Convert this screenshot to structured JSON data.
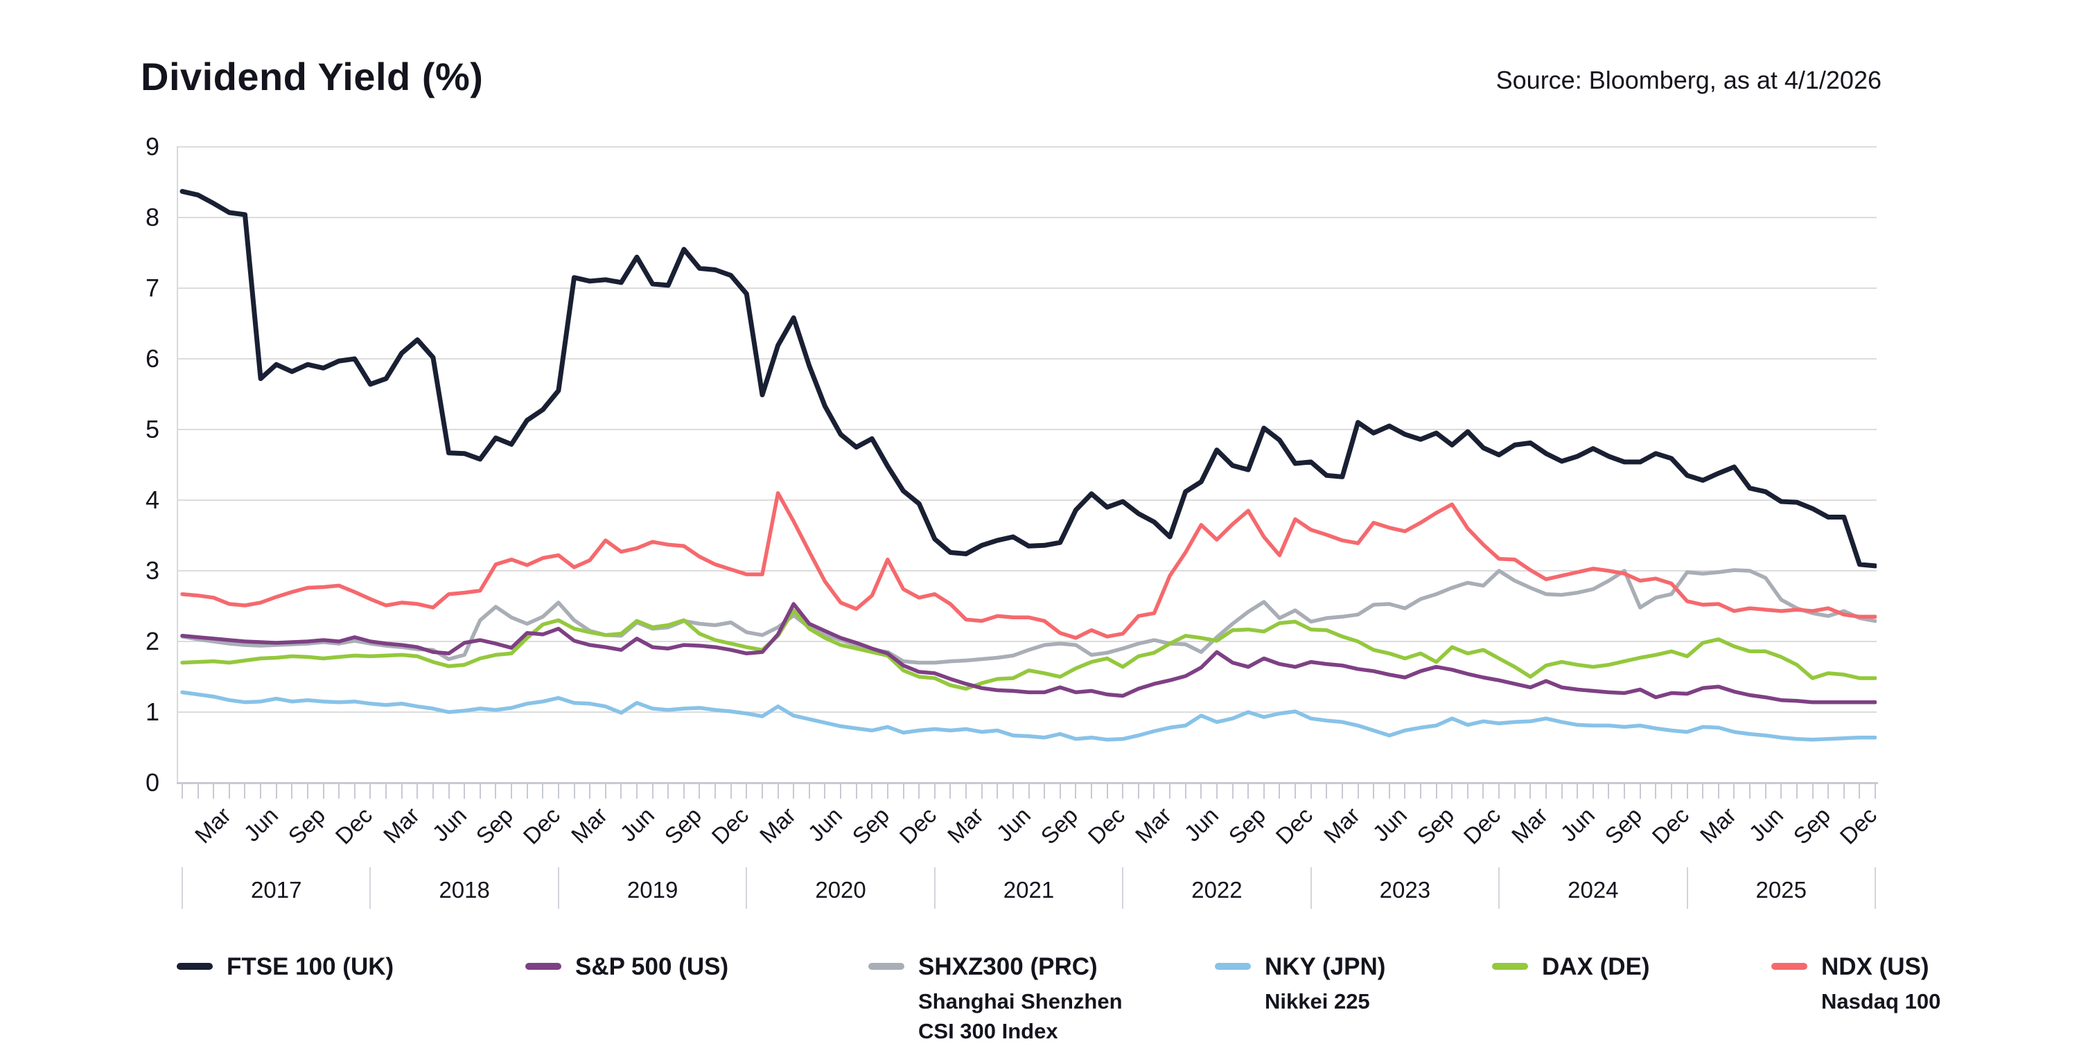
{
  "header": {
    "title": "Dividend Yield (%)",
    "source": "Source: Bloomberg, as at 4/1/2026"
  },
  "chart_data": {
    "type": "line",
    "title": "Dividend Yield (%)",
    "x_start": "Jan 2017",
    "x_end": "Jan 2026",
    "x_quarter_labels": [
      "Mar",
      "Jun",
      "Sep",
      "Dec"
    ],
    "years": [
      "2017",
      "2018",
      "2019",
      "2020",
      "2021",
      "2022",
      "2023",
      "2024",
      "2025"
    ],
    "ylim": [
      0,
      9
    ],
    "y_ticks": [
      "0",
      "1",
      "2",
      "3",
      "4",
      "5",
      "6",
      "7",
      "8",
      "9"
    ],
    "grid": "horizontal",
    "legend_position": "bottom",
    "series": [
      {
        "name": "FTSE 100 (UK)",
        "sublabel": [],
        "color": "#1a2033",
        "values": [
          8.37,
          8.32,
          8.2,
          8.07,
          8.04,
          5.72,
          5.92,
          5.82,
          5.92,
          5.87,
          5.97,
          6.0,
          5.64,
          5.72,
          6.08,
          6.27,
          6.02,
          4.67,
          4.66,
          4.58,
          4.88,
          4.79,
          5.13,
          5.28,
          5.55,
          7.15,
          7.1,
          7.12,
          7.08,
          7.44,
          7.06,
          7.04,
          7.55,
          7.28,
          7.26,
          7.18,
          6.92,
          5.49,
          6.19,
          6.58,
          5.9,
          5.33,
          4.93,
          4.75,
          4.87,
          4.48,
          4.13,
          3.95,
          3.45,
          3.26,
          3.24,
          3.36,
          3.43,
          3.48,
          3.35,
          3.36,
          3.4,
          3.86,
          4.09,
          3.9,
          3.98,
          3.81,
          3.69,
          3.48,
          4.12,
          4.26,
          4.71,
          4.49,
          4.43,
          5.02,
          4.85,
          4.52,
          4.54,
          4.35,
          4.33,
          5.1,
          4.95,
          5.05,
          4.93,
          4.86,
          4.95,
          4.78,
          4.97,
          4.74,
          4.64,
          4.78,
          4.81,
          4.66,
          4.55,
          4.62,
          4.73,
          4.62,
          4.54,
          4.54,
          4.66,
          4.59,
          4.35,
          4.28,
          4.38,
          4.47,
          4.17,
          4.12,
          3.98,
          3.97,
          3.88,
          3.76,
          3.76,
          3.09,
          3.07
        ]
      },
      {
        "name": "S&P 500 (US)",
        "sublabel": [],
        "color": "#7e4084",
        "values": [
          2.08,
          2.06,
          2.04,
          2.02,
          2.0,
          1.99,
          1.98,
          1.99,
          2.0,
          2.02,
          2.0,
          2.06,
          2.0,
          1.97,
          1.95,
          1.92,
          1.85,
          1.83,
          1.98,
          2.02,
          1.97,
          1.91,
          2.12,
          2.1,
          2.18,
          2.01,
          1.95,
          1.92,
          1.88,
          2.04,
          1.92,
          1.9,
          1.95,
          1.94,
          1.92,
          1.88,
          1.83,
          1.85,
          2.1,
          2.53,
          2.25,
          2.15,
          2.05,
          1.98,
          1.9,
          1.83,
          1.66,
          1.57,
          1.55,
          1.47,
          1.4,
          1.34,
          1.31,
          1.3,
          1.28,
          1.28,
          1.35,
          1.28,
          1.3,
          1.25,
          1.23,
          1.33,
          1.4,
          1.45,
          1.51,
          1.63,
          1.85,
          1.7,
          1.64,
          1.76,
          1.68,
          1.64,
          1.71,
          1.68,
          1.66,
          1.61,
          1.58,
          1.53,
          1.49,
          1.58,
          1.64,
          1.6,
          1.54,
          1.49,
          1.45,
          1.4,
          1.35,
          1.44,
          1.35,
          1.32,
          1.3,
          1.28,
          1.27,
          1.32,
          1.21,
          1.27,
          1.26,
          1.34,
          1.36,
          1.29,
          1.24,
          1.21,
          1.17,
          1.16,
          1.14,
          1.14,
          1.14,
          1.14,
          1.14
        ]
      },
      {
        "name": "SHXZ300 (PRC)",
        "sublabel": [
          "Shanghai Shenzhen",
          "CSI 300 Index"
        ],
        "color": "#a9aeb6",
        "values": [
          2.07,
          2.03,
          2.0,
          1.97,
          1.95,
          1.94,
          1.95,
          1.96,
          1.97,
          1.99,
          1.97,
          2.01,
          1.97,
          1.94,
          1.92,
          1.89,
          1.88,
          1.75,
          1.81,
          2.3,
          2.49,
          2.34,
          2.25,
          2.35,
          2.55,
          2.3,
          2.15,
          2.09,
          2.08,
          2.27,
          2.18,
          2.2,
          2.29,
          2.25,
          2.23,
          2.27,
          2.13,
          2.09,
          2.2,
          2.37,
          2.2,
          2.1,
          2.02,
          1.95,
          1.88,
          1.85,
          1.72,
          1.7,
          1.7,
          1.72,
          1.73,
          1.75,
          1.77,
          1.8,
          1.88,
          1.95,
          1.97,
          1.95,
          1.81,
          1.84,
          1.9,
          1.97,
          2.02,
          1.97,
          1.96,
          1.85,
          2.06,
          2.25,
          2.42,
          2.56,
          2.33,
          2.44,
          2.28,
          2.33,
          2.35,
          2.38,
          2.52,
          2.53,
          2.47,
          2.6,
          2.67,
          2.76,
          2.83,
          2.79,
          3.0,
          2.86,
          2.76,
          2.67,
          2.66,
          2.69,
          2.74,
          2.86,
          3.0,
          2.48,
          2.62,
          2.67,
          2.98,
          2.96,
          2.98,
          3.01,
          3.0,
          2.9,
          2.59,
          2.47,
          2.4,
          2.36,
          2.43,
          2.33,
          2.29
        ]
      },
      {
        "name": "NKY (JPN)",
        "sublabel": [
          "Nikkei 225"
        ],
        "color": "#88c2e8",
        "values": [
          1.28,
          1.25,
          1.22,
          1.17,
          1.14,
          1.15,
          1.19,
          1.15,
          1.17,
          1.15,
          1.14,
          1.15,
          1.12,
          1.1,
          1.12,
          1.08,
          1.05,
          1.0,
          1.02,
          1.05,
          1.03,
          1.06,
          1.12,
          1.15,
          1.2,
          1.13,
          1.12,
          1.08,
          0.99,
          1.13,
          1.05,
          1.03,
          1.05,
          1.06,
          1.03,
          1.01,
          0.98,
          0.94,
          1.08,
          0.95,
          0.9,
          0.85,
          0.8,
          0.77,
          0.74,
          0.79,
          0.71,
          0.74,
          0.76,
          0.74,
          0.76,
          0.72,
          0.74,
          0.67,
          0.66,
          0.64,
          0.69,
          0.62,
          0.64,
          0.61,
          0.62,
          0.67,
          0.73,
          0.78,
          0.81,
          0.95,
          0.86,
          0.91,
          1.0,
          0.93,
          0.98,
          1.01,
          0.91,
          0.88,
          0.86,
          0.81,
          0.74,
          0.67,
          0.74,
          0.78,
          0.81,
          0.91,
          0.82,
          0.87,
          0.84,
          0.86,
          0.87,
          0.91,
          0.86,
          0.82,
          0.81,
          0.81,
          0.79,
          0.81,
          0.77,
          0.74,
          0.72,
          0.79,
          0.78,
          0.72,
          0.69,
          0.67,
          0.64,
          0.62,
          0.61,
          0.62,
          0.63,
          0.64,
          0.64
        ]
      },
      {
        "name": "DAX (DE)",
        "sublabel": [],
        "color": "#94c83d",
        "values": [
          1.7,
          1.71,
          1.72,
          1.7,
          1.73,
          1.76,
          1.77,
          1.79,
          1.78,
          1.76,
          1.78,
          1.8,
          1.79,
          1.8,
          1.81,
          1.79,
          1.71,
          1.65,
          1.67,
          1.76,
          1.81,
          1.83,
          2.05,
          2.24,
          2.3,
          2.18,
          2.13,
          2.09,
          2.11,
          2.29,
          2.2,
          2.23,
          2.3,
          2.11,
          2.02,
          1.97,
          1.92,
          1.88,
          2.08,
          2.44,
          2.18,
          2.05,
          1.95,
          1.9,
          1.85,
          1.8,
          1.59,
          1.5,
          1.48,
          1.38,
          1.33,
          1.41,
          1.47,
          1.48,
          1.59,
          1.55,
          1.5,
          1.62,
          1.71,
          1.76,
          1.64,
          1.79,
          1.84,
          1.97,
          2.08,
          2.05,
          2.01,
          2.16,
          2.17,
          2.14,
          2.26,
          2.28,
          2.17,
          2.16,
          2.07,
          2.0,
          1.88,
          1.83,
          1.76,
          1.83,
          1.71,
          1.92,
          1.83,
          1.88,
          1.76,
          1.64,
          1.5,
          1.66,
          1.71,
          1.67,
          1.64,
          1.67,
          1.72,
          1.77,
          1.81,
          1.86,
          1.79,
          1.98,
          2.03,
          1.93,
          1.86,
          1.86,
          1.78,
          1.67,
          1.48,
          1.55,
          1.53,
          1.48,
          1.48
        ]
      },
      {
        "name": "NDX (US)",
        "sublabel": [
          "Nasdaq 100"
        ],
        "color": "#f5696d",
        "values": [
          2.67,
          2.65,
          2.62,
          2.53,
          2.51,
          2.55,
          2.63,
          2.7,
          2.76,
          2.77,
          2.79,
          2.7,
          2.6,
          2.51,
          2.55,
          2.53,
          2.48,
          2.67,
          2.69,
          2.72,
          3.09,
          3.16,
          3.08,
          3.18,
          3.22,
          3.05,
          3.15,
          3.43,
          3.27,
          3.32,
          3.41,
          3.37,
          3.35,
          3.2,
          3.09,
          3.02,
          2.95,
          2.95,
          4.1,
          3.7,
          3.27,
          2.85,
          2.55,
          2.46,
          2.65,
          3.16,
          2.74,
          2.62,
          2.67,
          2.53,
          2.31,
          2.29,
          2.36,
          2.34,
          2.34,
          2.29,
          2.12,
          2.05,
          2.16,
          2.07,
          2.11,
          2.36,
          2.4,
          2.93,
          3.26,
          3.65,
          3.44,
          3.66,
          3.85,
          3.48,
          3.22,
          3.73,
          3.58,
          3.51,
          3.43,
          3.39,
          3.68,
          3.61,
          3.56,
          3.68,
          3.82,
          3.94,
          3.6,
          3.37,
          3.17,
          3.16,
          3.01,
          2.88,
          2.93,
          2.98,
          3.03,
          3.0,
          2.96,
          2.86,
          2.89,
          2.82,
          2.57,
          2.52,
          2.53,
          2.43,
          2.47,
          2.45,
          2.43,
          2.45,
          2.43,
          2.47,
          2.38,
          2.35,
          2.35
        ]
      }
    ]
  },
  "colors": {
    "background": "#ffffff",
    "text": "#14141e",
    "gridline": "#dcdcdc",
    "axis": "#c7cad4"
  }
}
